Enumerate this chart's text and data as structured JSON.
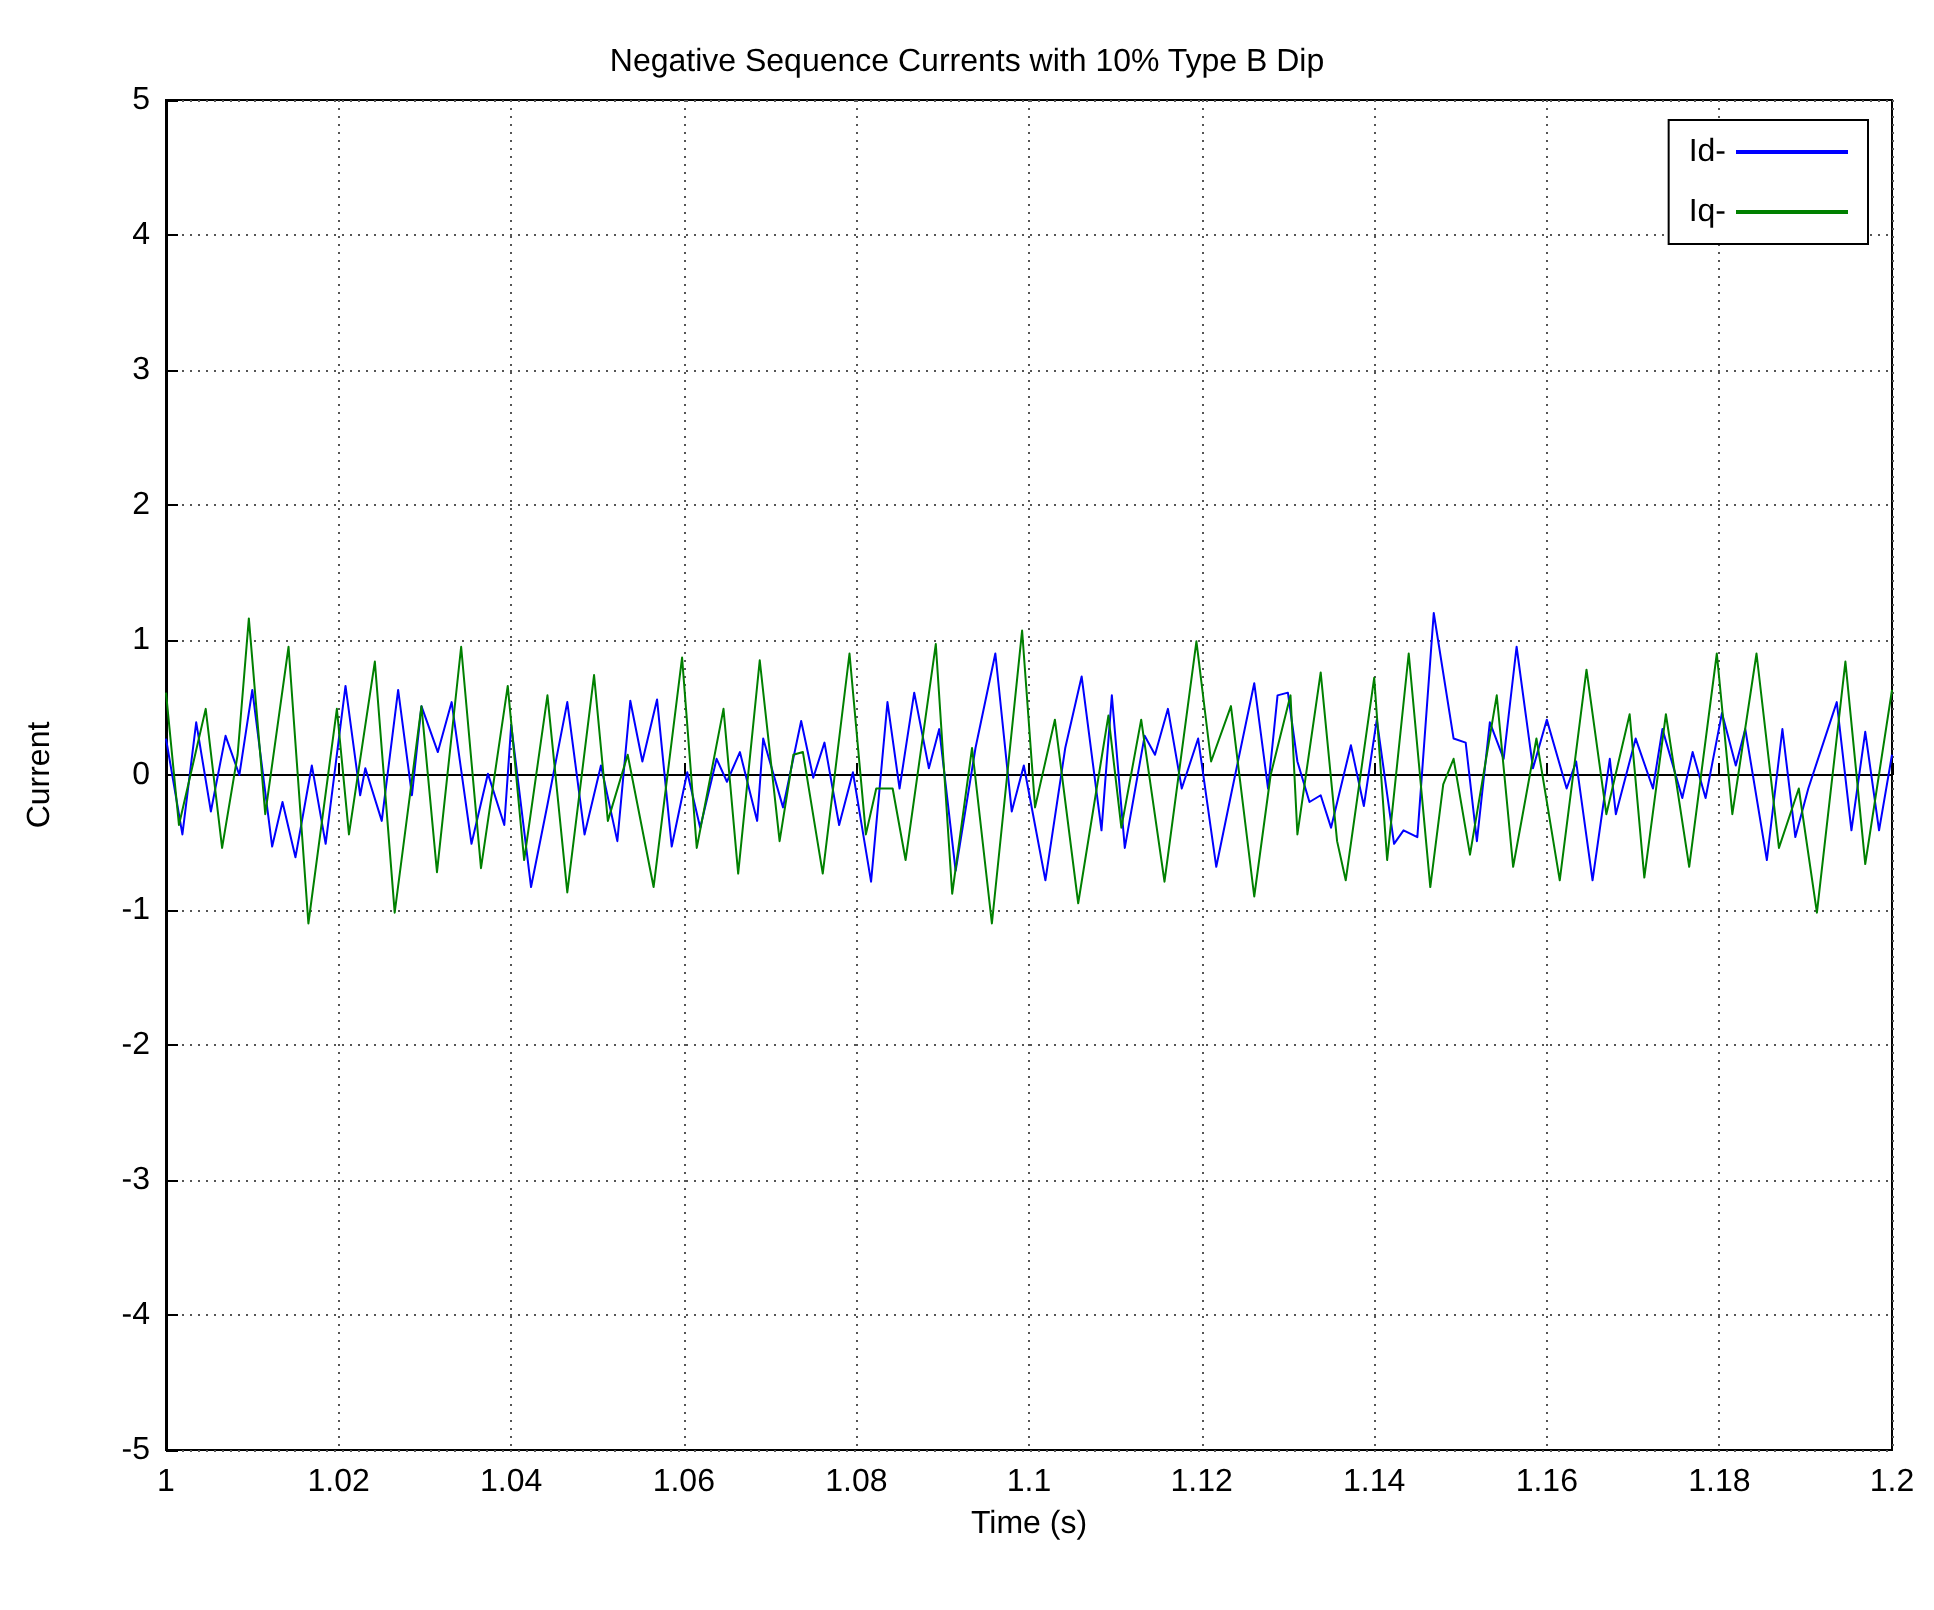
{
  "chart_data": {
    "type": "line",
    "title": "Negative Sequence Currents with 10% Type B Dip",
    "xlabel": "Time (s)",
    "ylabel": "Current",
    "xlim": [
      1,
      1.2
    ],
    "xticks": [
      1,
      1.02,
      1.04,
      1.06,
      1.08,
      1.1,
      1.12,
      1.14,
      1.16,
      1.18,
      1.2
    ],
    "ylim": [
      -5,
      5
    ],
    "yticks": [
      -5,
      -4,
      -3,
      -2,
      -1,
      0,
      1,
      2,
      3,
      4,
      5
    ],
    "grid": true,
    "legend": "top right",
    "series": [
      {
        "name": "Id-",
        "color": "#0000ff",
        "x": [
          1.0,
          1.0019,
          1.0035,
          1.0052,
          1.0069,
          1.0085,
          1.01,
          1.0123,
          1.0135,
          1.015,
          1.0169,
          1.0185,
          1.0208,
          1.0225,
          1.0231,
          1.025,
          1.0269,
          1.0285,
          1.0296,
          1.0315,
          1.0331,
          1.0354,
          1.0373,
          1.0392,
          1.04,
          1.0423,
          1.0442,
          1.0465,
          1.0485,
          1.0504,
          1.0523,
          1.0538,
          1.0552,
          1.0569,
          1.0586,
          1.0604,
          1.0619,
          1.0638,
          1.065,
          1.0665,
          1.0685,
          1.0692,
          1.0715,
          1.0736,
          1.075,
          1.0763,
          1.078,
          1.0796,
          1.0817,
          1.0836,
          1.085,
          1.0867,
          1.0884,
          1.0896,
          1.0915,
          1.0938,
          1.0961,
          1.098,
          1.0994,
          1.1019,
          1.1042,
          1.1061,
          1.1084,
          1.1096,
          1.1111,
          1.1134,
          1.1146,
          1.1161,
          1.1177,
          1.1196,
          1.1217,
          1.1234,
          1.1261,
          1.1277,
          1.1288,
          1.13,
          1.1311,
          1.1325,
          1.1338,
          1.135,
          1.1373,
          1.1388,
          1.1403,
          1.1423,
          1.1434,
          1.145,
          1.1469,
          1.1492,
          1.1506,
          1.1519,
          1.1534,
          1.155,
          1.1565,
          1.1584,
          1.16,
          1.1623,
          1.1634,
          1.1653,
          1.1673,
          1.168,
          1.1703,
          1.1723,
          1.1734,
          1.1757,
          1.1769,
          1.1784,
          1.1803,
          1.1819,
          1.183,
          1.1855,
          1.1873,
          1.1888,
          1.1903,
          1.1936,
          1.1953,
          1.1969,
          1.1985,
          1.2
        ],
        "values": [
          0.27,
          -0.44,
          0.39,
          -0.27,
          0.29,
          0,
          0.63,
          -0.53,
          -0.2,
          -0.61,
          0.07,
          -0.51,
          0.66,
          -0.15,
          0.05,
          -0.34,
          0.63,
          -0.15,
          0.51,
          0.17,
          0.54,
          -0.51,
          0.01,
          -0.37,
          0.37,
          -0.83,
          -0.22,
          0.54,
          -0.44,
          0.07,
          -0.49,
          0.55,
          0.1,
          0.56,
          -0.53,
          0.02,
          -0.39,
          0.12,
          -0.05,
          0.17,
          -0.34,
          0.27,
          -0.24,
          0.4,
          -0.02,
          0.24,
          -0.37,
          0.02,
          -0.79,
          0.54,
          -0.1,
          0.61,
          0.05,
          0.34,
          -0.71,
          0.2,
          0.9,
          -0.27,
          0.07,
          -0.78,
          0.2,
          0.73,
          -0.41,
          0.59,
          -0.54,
          0.29,
          0.15,
          0.49,
          -0.1,
          0.27,
          -0.68,
          -0.15,
          0.68,
          -0.1,
          0.59,
          0.61,
          0.1,
          -0.2,
          -0.15,
          -0.39,
          0.22,
          -0.23,
          0.41,
          -0.51,
          -0.41,
          -0.46,
          1.2,
          0.27,
          0.24,
          -0.49,
          0.39,
          0.12,
          0.95,
          0.05,
          0.41,
          -0.1,
          0.1,
          -0.78,
          0.12,
          -0.29,
          0.27,
          -0.1,
          0.34,
          -0.17,
          0.17,
          -0.17,
          0.46,
          0.07,
          0.34,
          -0.63,
          0.34,
          -0.46,
          -0.1,
          0.54,
          -0.41,
          0.32,
          -0.41,
          0.15
        ]
      },
      {
        "name": "Iq-",
        "color": "#008000",
        "x": [
          1.0,
          1.0015,
          1.0046,
          1.0065,
          1.0083,
          1.0096,
          1.0115,
          1.0142,
          1.0165,
          1.0198,
          1.0212,
          1.0242,
          1.0265,
          1.0296,
          1.0314,
          1.0342,
          1.0365,
          1.0396,
          1.0415,
          1.0442,
          1.0465,
          1.0496,
          1.0512,
          1.0535,
          1.0565,
          1.0598,
          1.0615,
          1.0646,
          1.0663,
          1.0688,
          1.0711,
          1.0727,
          1.0738,
          1.0761,
          1.0792,
          1.0811,
          1.0823,
          1.0842,
          1.0857,
          1.0892,
          1.0911,
          1.0934,
          1.0957,
          1.0992,
          1.1007,
          1.103,
          1.1057,
          1.1092,
          1.1107,
          1.113,
          1.1157,
          1.1194,
          1.1211,
          1.1234,
          1.1261,
          1.128,
          1.1303,
          1.1311,
          1.1338,
          1.1357,
          1.1367,
          1.14,
          1.1415,
          1.144,
          1.1465,
          1.148,
          1.1492,
          1.1511,
          1.1542,
          1.1561,
          1.1588,
          1.1615,
          1.1646,
          1.1669,
          1.1696,
          1.1713,
          1.1738,
          1.1765,
          1.1797,
          1.1815,
          1.1843,
          1.1869,
          1.1892,
          1.1913,
          1.1946,
          1.1969,
          1.2
        ],
        "values": [
          0.61,
          -0.37,
          0.49,
          -0.54,
          0.15,
          1.16,
          -0.29,
          0.95,
          -1.1,
          0.49,
          -0.44,
          0.84,
          -1.02,
          0.51,
          -0.72,
          0.95,
          -0.69,
          0.66,
          -0.63,
          0.59,
          -0.87,
          0.74,
          -0.34,
          0.15,
          -0.83,
          0.87,
          -0.54,
          0.49,
          -0.73,
          0.85,
          -0.49,
          0.15,
          0.17,
          -0.73,
          0.9,
          -0.44,
          -0.1,
          -0.1,
          -0.63,
          0.97,
          -0.88,
          0.2,
          -1.1,
          1.07,
          -0.24,
          0.41,
          -0.95,
          0.44,
          -0.39,
          0.41,
          -0.79,
          0.99,
          0.1,
          0.51,
          -0.9,
          0,
          0.59,
          -0.44,
          0.76,
          -0.49,
          -0.78,
          0.72,
          -0.63,
          0.9,
          -0.83,
          -0.07,
          0.12,
          -0.59,
          0.59,
          -0.68,
          0.27,
          -0.78,
          0.78,
          -0.29,
          0.45,
          -0.76,
          0.45,
          -0.68,
          0.9,
          -0.29,
          0.9,
          -0.54,
          -0.1,
          -1.02,
          0.84,
          -0.66,
          0.63
        ]
      }
    ]
  }
}
